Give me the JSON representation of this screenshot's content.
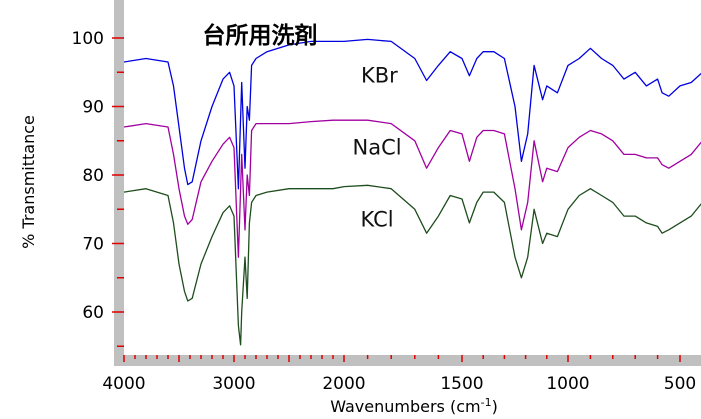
{
  "chart_data": {
    "type": "line",
    "title": "台所用洗剤",
    "xlabel": "Wavenumbers (cm",
    "xlabel_superscript": "-1",
    "xlabel_suffix": ")",
    "ylabel": "% Transmittance",
    "xlim": [
      4000,
      400
    ],
    "ylim": [
      50,
      105
    ],
    "x_ticks": [
      4000,
      3000,
      2000,
      1000,
      500
    ],
    "x_tick_labels": [
      "4000",
      "3000",
      "2000",
      "1500",
      "1000",
      "500"
    ],
    "x_tick_values": [
      4000,
      3000,
      2000,
      1500,
      1000,
      500
    ],
    "y_ticks": [
      60,
      70,
      80,
      90,
      100
    ],
    "y_tick_labels": [
      "60",
      "70",
      "80",
      "90",
      "100"
    ],
    "axis_color": "#c0c0c0",
    "tick_color": "#e00000",
    "series": [
      {
        "name": "KBr",
        "color": "#0000e0",
        "x": [
          4000,
          3800,
          3600,
          3550,
          3500,
          3450,
          3420,
          3380,
          3300,
          3200,
          3100,
          3040,
          3000,
          2960,
          2930,
          2900,
          2880,
          2860,
          2840,
          2800,
          2700,
          2500,
          2300,
          2100,
          2000,
          1900,
          1800,
          1700,
          1650,
          1600,
          1550,
          1500,
          1465,
          1430,
          1400,
          1350,
          1300,
          1250,
          1220,
          1190,
          1160,
          1120,
          1100,
          1050,
          1000,
          950,
          900,
          850,
          800,
          750,
          700,
          650,
          600,
          580,
          550,
          500,
          450,
          400
        ],
        "y": [
          96.5,
          97,
          96.5,
          93,
          87,
          81,
          78.6,
          79,
          85,
          90,
          94,
          95,
          93,
          78,
          93.5,
          81,
          90,
          88,
          96,
          97,
          98,
          99,
          99.5,
          99.5,
          99.5,
          99.8,
          99.5,
          97,
          93.8,
          96,
          98,
          97,
          94.5,
          97,
          98,
          98,
          97,
          90,
          82,
          86,
          96,
          91,
          93,
          92,
          96,
          97,
          98.5,
          97,
          96,
          94,
          95,
          93,
          94,
          92,
          91.5,
          93,
          93.5,
          95
        ]
      },
      {
        "name": "NaCl",
        "color": "#a000a0",
        "x": [
          4000,
          3800,
          3600,
          3550,
          3500,
          3450,
          3420,
          3380,
          3300,
          3200,
          3100,
          3040,
          3000,
          2960,
          2930,
          2900,
          2880,
          2860,
          2840,
          2800,
          2700,
          2500,
          2300,
          2100,
          2000,
          1900,
          1800,
          1700,
          1650,
          1600,
          1550,
          1500,
          1465,
          1430,
          1400,
          1350,
          1300,
          1250,
          1220,
          1190,
          1160,
          1120,
          1100,
          1050,
          1000,
          950,
          900,
          850,
          800,
          750,
          700,
          650,
          600,
          580,
          550,
          500,
          450,
          400
        ],
        "y": [
          87,
          87.5,
          87,
          83,
          78,
          74,
          72.8,
          73.5,
          79,
          82,
          84.5,
          85.5,
          84,
          68,
          83,
          72,
          80,
          77,
          86.5,
          87.5,
          87.5,
          87.5,
          87.8,
          88,
          88,
          88,
          87.5,
          85,
          81,
          84,
          86.5,
          86,
          82,
          85.5,
          86.5,
          86.5,
          86,
          78,
          72,
          76,
          85,
          79,
          81,
          80.5,
          84,
          85.5,
          86.5,
          86,
          85,
          83,
          83,
          82.5,
          82.5,
          81.5,
          81,
          82,
          83,
          85
        ]
      },
      {
        "name": "KCl",
        "color": "#1e4d1e",
        "x": [
          4000,
          3800,
          3600,
          3550,
          3500,
          3450,
          3420,
          3380,
          3300,
          3200,
          3100,
          3040,
          3000,
          2960,
          2940,
          2930,
          2900,
          2880,
          2860,
          2840,
          2800,
          2700,
          2500,
          2300,
          2100,
          2000,
          1900,
          1800,
          1700,
          1650,
          1600,
          1550,
          1500,
          1465,
          1430,
          1400,
          1350,
          1300,
          1250,
          1220,
          1190,
          1160,
          1120,
          1100,
          1050,
          1000,
          950,
          900,
          850,
          800,
          750,
          700,
          650,
          600,
          580,
          550,
          500,
          450,
          400
        ],
        "y": [
          77.5,
          78,
          77,
          73,
          67,
          63,
          61.6,
          62,
          67,
          71,
          74.5,
          75.5,
          74,
          58,
          55.2,
          60,
          68,
          62,
          73,
          76,
          77,
          77.5,
          78,
          78,
          78,
          78.3,
          78.5,
          78,
          75,
          71.5,
          74,
          77,
          76.5,
          73,
          76,
          77.5,
          77.5,
          76,
          68,
          65,
          68,
          75,
          70,
          71.5,
          71,
          75,
          77,
          78,
          77,
          76,
          74,
          74,
          73,
          72.5,
          71.5,
          72,
          73,
          74,
          76
        ]
      }
    ],
    "series_labels": [
      {
        "text": "KBr",
        "x": 1850,
        "y": 93.5
      },
      {
        "text": "NaCl",
        "x": 1860,
        "y": 83
      },
      {
        "text": "KCl",
        "x": 1860,
        "y": 72.5
      }
    ]
  }
}
